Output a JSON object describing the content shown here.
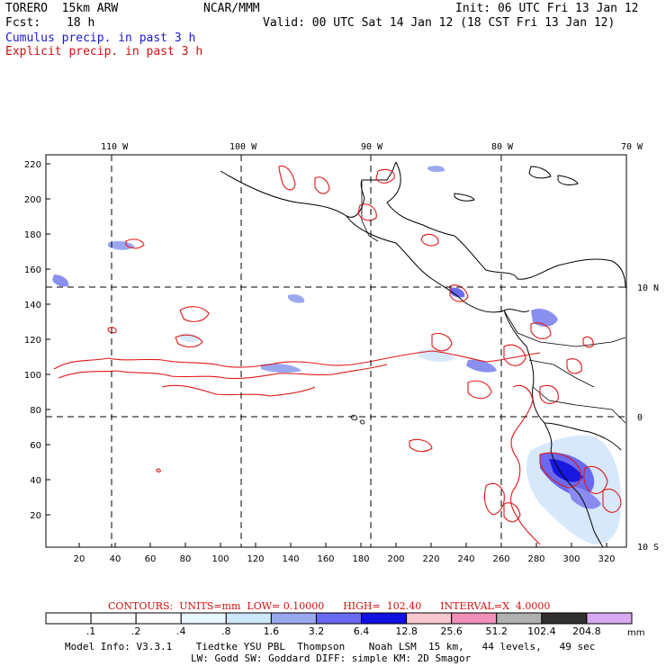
{
  "header": {
    "model": "TORERO  15km ARW",
    "org": "NCAR/MMM",
    "init": "Init: 06 UTC Fri 13 Jan 12",
    "fcst_label": "Fcst:",
    "fcst_value": "18 h",
    "valid": "Valid: 00 UTC Sat 14 Jan 12 (18 CST Fri 13 Jan 12)",
    "field1": "Cumulus precip. in past 3 h",
    "field2": "Explicit precip. in past 3 h"
  },
  "map": {
    "lon_labels": [
      "110 W",
      "100 W",
      "90 W",
      "80 W",
      "70 W"
    ],
    "lat_labels": [
      "10 N",
      "0",
      "10 S"
    ],
    "y_ticks": [
      "220",
      "200",
      "180",
      "160",
      "140",
      "120",
      "100",
      "80",
      "60",
      "40",
      "20"
    ],
    "x_ticks": [
      "20",
      "40",
      "60",
      "80",
      "100",
      "120",
      "140",
      "160",
      "180",
      "200",
      "220",
      "240",
      "260",
      "280",
      "300",
      "320"
    ]
  },
  "footer": {
    "contours": "CONTOURS:  UNITS=mm  LOW= 0.10000      HIGH=  102.40      INTERVAL=X  4.0000",
    "colorbar_labels": [
      ".1",
      ".2",
      ".4",
      ".8",
      "1.6",
      "3.2",
      "6.4",
      "12.8",
      "25.6",
      "51.2",
      "102.4",
      "204.8"
    ],
    "colorbar_unit": "mm",
    "colorbar_colors": [
      "#ffffff",
      "#ffffff",
      "#ffffff",
      "#e8f8ff",
      "#cde8f8",
      "#9aa8f0",
      "#6868f0",
      "#1010e0",
      "#f8c8d0",
      "#f090b8",
      "#b0b0b0",
      "#303030",
      "#d8a8f0"
    ],
    "info_line1": "Model Info: V3.3.1    Tiedtke YSU PBL  Thompson    Noah LSM  15 km,   44 levels,   49 sec",
    "info_line2": "LW: Godd SW: Goddard DIFF: simple KM: 2D Smagor"
  }
}
